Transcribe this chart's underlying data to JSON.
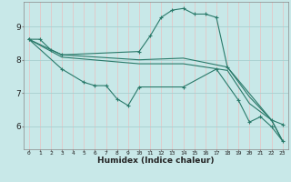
{
  "xlabel": "Humidex (Indice chaleur)",
  "bg_color": "#c8e8e8",
  "grid_color_h": "#a8d0d0",
  "grid_color_v": "#e8c0c0",
  "line_color": "#2a7a6a",
  "xlim": [
    -0.5,
    23.5
  ],
  "ylim": [
    5.3,
    9.75
  ],
  "xticks": [
    0,
    1,
    2,
    3,
    4,
    5,
    6,
    7,
    8,
    9,
    10,
    11,
    12,
    13,
    14,
    15,
    16,
    17,
    18,
    19,
    20,
    21,
    22,
    23
  ],
  "yticks": [
    6,
    7,
    8,
    9
  ],
  "series": [
    {
      "x": [
        0,
        1,
        2,
        3,
        10,
        11,
        12,
        13,
        14,
        15,
        16,
        17,
        18,
        22,
        23
      ],
      "y": [
        8.62,
        8.62,
        8.3,
        8.15,
        8.25,
        8.72,
        9.28,
        9.5,
        9.55,
        9.38,
        9.38,
        9.28,
        7.78,
        6.18,
        6.05
      ],
      "marker": "+"
    },
    {
      "x": [
        0,
        3,
        10,
        14,
        18,
        20,
        22,
        23
      ],
      "y": [
        8.62,
        8.15,
        8.0,
        8.05,
        7.78,
        6.88,
        6.18,
        5.55
      ],
      "marker": null
    },
    {
      "x": [
        0,
        3,
        10,
        14,
        18,
        20,
        22,
        23
      ],
      "y": [
        8.62,
        8.08,
        7.88,
        7.88,
        7.68,
        6.68,
        6.18,
        5.55
      ],
      "marker": null
    },
    {
      "x": [
        0,
        3,
        5,
        6,
        7,
        8,
        9,
        10,
        14,
        17,
        19,
        20,
        21,
        22,
        23
      ],
      "y": [
        8.62,
        7.72,
        7.32,
        7.22,
        7.22,
        6.82,
        6.62,
        7.18,
        7.18,
        7.72,
        6.78,
        6.12,
        6.28,
        5.98,
        5.55
      ],
      "marker": "+"
    }
  ]
}
